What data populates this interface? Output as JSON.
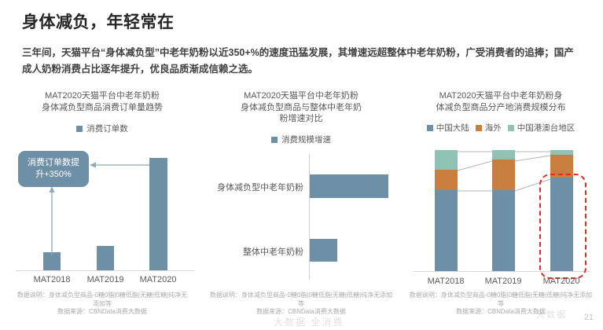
{
  "header": {
    "title": "身体减负，年轻常在",
    "body": "三年间，天猫平台“身体减负型”中老年奶粉以近350+%的速度迅猛发展，其增速远超整体中老年奶粉，广受消费者的追捧；国产成人奶粉消费占比逐年提升，优良品质渐成信赖之选。"
  },
  "colors": {
    "blue": "#6E90A7",
    "orange": "#C87E3E",
    "teal": "#90C2B3",
    "red": "#E02B2B",
    "arrow": "#8FA9BC",
    "axis": "#D9D9D9",
    "text-gray": "#595959",
    "note-gray": "#ABABAB"
  },
  "charts": {
    "c1": {
      "title_display": "MAT2020天猫平台中老年奶粉\n身体减负型商品消费订单量趋势",
      "annotation_display": "消费订单数提\n升+350%"
    },
    "c2": {
      "title_display": "MAT2020天猫平台中老年奶粉\n身体减负型商品与整体中老年奶\n粉增速对比"
    },
    "c3": {
      "title_display": "MAT2020天猫平台中老年奶粉身\n体减负型商品分产地消费规模分布"
    }
  },
  "source_note": {
    "line1": "数据说明：身体减负型商品-0糖0脂|0糖低脂|无糖|低糖|纯净无添加等",
    "line2": "数据来源：CBNData消费大数据"
  },
  "watermarks": {
    "w1": "大数据 全消费",
    "w2": "大数据"
  },
  "page": {
    "number": "21"
  },
  "chart_data": [
    {
      "type": "bar",
      "title": "MAT2020天猫平台中老年奶粉身体减负型商品消费订单量趋势",
      "categories": [
        "MAT2018",
        "MAT2019",
        "MAT2020"
      ],
      "series": [
        {
          "name": "消费订单数",
          "values_pct_of_max": [
            16,
            22,
            100
          ]
        }
      ],
      "annotation": "消费订单数提升+350%",
      "xlabel": "",
      "ylabel": "",
      "value_axis_shown": false,
      "legend_position": "top",
      "grid": false
    },
    {
      "type": "bar",
      "orientation": "horizontal",
      "title": "MAT2020天猫平台中老年奶粉身体减负型商品与整体中老年奶粉增速对比",
      "categories": [
        "身体减负型中老年奶粉",
        "整体中老年奶粉"
      ],
      "series": [
        {
          "name": "消费规模增速",
          "values_pct_of_max": [
            100,
            35
          ]
        }
      ],
      "xlabel": "",
      "ylabel": "",
      "value_axis_shown": false,
      "legend_position": "top",
      "grid": false
    },
    {
      "type": "bar",
      "subtype": "stacked-100pct",
      "title": "MAT2020天猫平台中老年奶粉身体减负型商品分产地消费规模分布",
      "categories": [
        "MAT2018",
        "MAT2019",
        "MAT2020"
      ],
      "series": [
        {
          "name": "中国大陆",
          "values_pct": [
            67,
            67,
            77
          ]
        },
        {
          "name": "海外",
          "values_pct": [
            17,
            25,
            19
          ]
        },
        {
          "name": "中国港澳台地区",
          "values_pct": [
            16,
            8,
            4
          ]
        }
      ],
      "annotation": "MAT2020 column highlighted with red dashed outline",
      "connector_lines": true,
      "xlabel": "",
      "ylabel": "",
      "legend_position": "top",
      "grid": false
    }
  ]
}
